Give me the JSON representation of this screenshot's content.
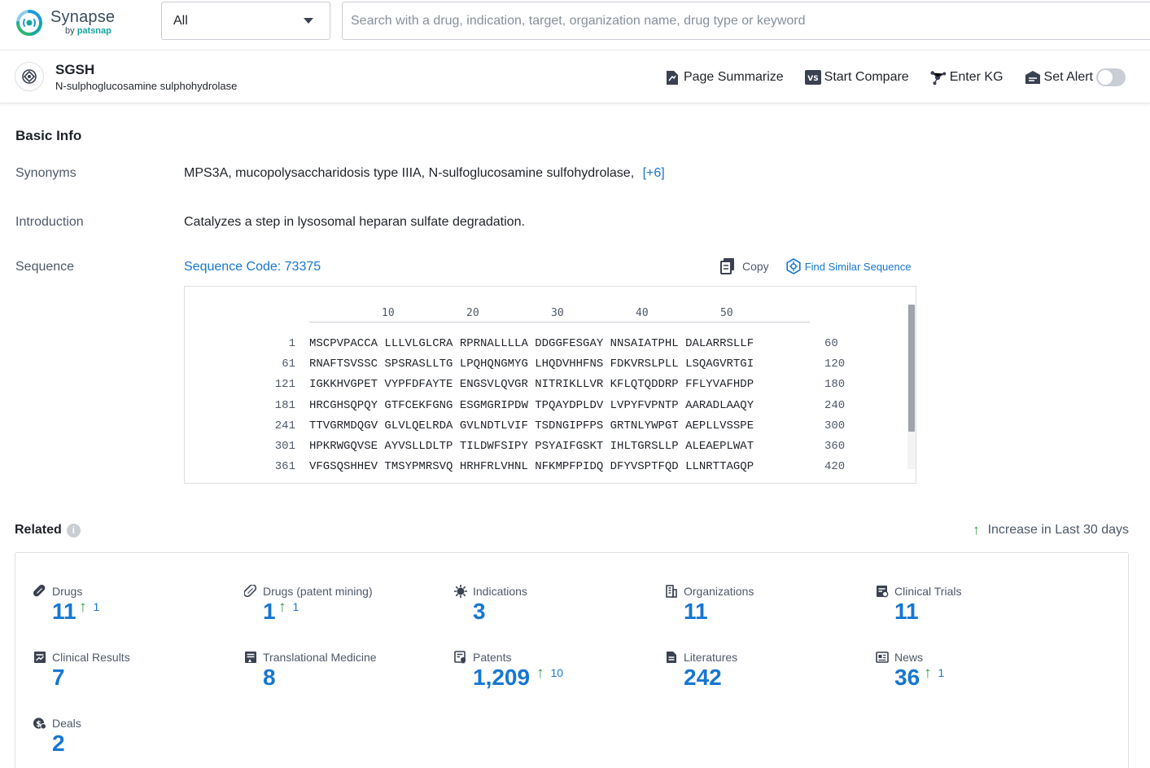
{
  "brand": {
    "name": "Synapse",
    "by_prefix": "by ",
    "by_brand": "patsnap"
  },
  "search": {
    "scope": "All",
    "placeholder": "Search with a drug, indication, target, organization name, drug type or keyword"
  },
  "entity": {
    "title": "SGSH",
    "subtitle": "N-sulphoglucosamine sulphohydrolase"
  },
  "actions": {
    "page_summarize": "Page Summarize",
    "start_compare": "Start Compare",
    "enter_kg": "Enter KG",
    "set_alert": "Set Alert"
  },
  "basic_info": {
    "title": "Basic Info",
    "synonyms_label": "Synonyms",
    "synonyms": "MPS3A,  mucopolysaccharidosis type IIIA,  N-sulfoglucosamine sulfohydrolase,",
    "synonyms_more": "[+6]",
    "introduction_label": "Introduction",
    "introduction": "Catalyzes a step in lysosomal heparan sulfate degradation.",
    "sequence_label": "Sequence",
    "sequence_code": "Sequence Code: 73375",
    "copy": "Copy",
    "find_similar": "Find Similar Sequence"
  },
  "sequence": {
    "ruler": [
      "10",
      "20",
      "30",
      "40",
      "50"
    ],
    "lines": [
      {
        "start": "1",
        "seq": "MSCPVPACCA LLLVLGLCRA RPRNALLLLA DDGGFESGAY NNSAIATPHL DALARRSLLF",
        "end": "60"
      },
      {
        "start": "61",
        "seq": "RNAFTSVSSC SPSRASLLTG LPQHQNGMYG LHQDVHHFNS FDKVRSLPLL LSQAGVRTGI",
        "end": "120"
      },
      {
        "start": "121",
        "seq": "IGKKHVGPET VYPFDFAYTE ENGSVLQVGR NITRIKLLVR KFLQTQDDRP FFLYVAFHDP",
        "end": "180"
      },
      {
        "start": "181",
        "seq": "HRCGHSQPQY GTFCEKFGNG ESGMGRIPDW TPQAYDPLDV LVPYFVPNTP AARADLAAQY",
        "end": "240"
      },
      {
        "start": "241",
        "seq": "TTVGRMDQGV GLVLQELRDA GVLNDTLVIF TSDNGIPFPS GRTNLYWPGT AEPLLVSSPE",
        "end": "300"
      },
      {
        "start": "301",
        "seq": "HPKRWGQVSE AYVSLLDLTP TILDWFSIPY PSYAIFGSKT IHLTGRSLLP ALEAEPLWAT",
        "end": "360"
      },
      {
        "start": "361",
        "seq": "VFGSQSHHEV TMSYPMRSVQ HRHFRLVHNL NFKMPFPIDQ DFYVSPTFQD LLNRTTAGQP",
        "end": "420"
      }
    ]
  },
  "related": {
    "title": "Related",
    "legend": "Increase in Last 30 days",
    "up_arrow": "↑",
    "stats": [
      {
        "label": "Drugs",
        "value": "11",
        "increase": "1",
        "icon": "pill-icon"
      },
      {
        "label": "Drugs (patent mining)",
        "value": "1",
        "increase": "1",
        "icon": "pill-icon"
      },
      {
        "label": "Indications",
        "value": "3",
        "increase": "",
        "icon": "virus-icon"
      },
      {
        "label": "Organizations",
        "value": "11",
        "increase": "",
        "icon": "building-icon"
      },
      {
        "label": "Clinical Trials",
        "value": "11",
        "increase": "",
        "icon": "clipboard-icon"
      },
      {
        "label": "Clinical Results",
        "value": "7",
        "increase": "",
        "icon": "chart-doc-icon"
      },
      {
        "label": "Translational Medicine",
        "value": "8",
        "increase": "",
        "icon": "doc-flask-icon"
      },
      {
        "label": "Patents",
        "value": "1,209",
        "increase": "10",
        "icon": "patent-icon"
      },
      {
        "label": "Literatures",
        "value": "242",
        "increase": "",
        "icon": "literature-icon"
      },
      {
        "label": "News",
        "value": "36",
        "increase": "1",
        "icon": "news-icon"
      },
      {
        "label": "Deals",
        "value": "2",
        "increase": "",
        "icon": "deal-icon"
      }
    ]
  },
  "colors": {
    "accent": "#1677d2",
    "increase": "#2ea043",
    "brand_teal": "#14a6a0"
  }
}
